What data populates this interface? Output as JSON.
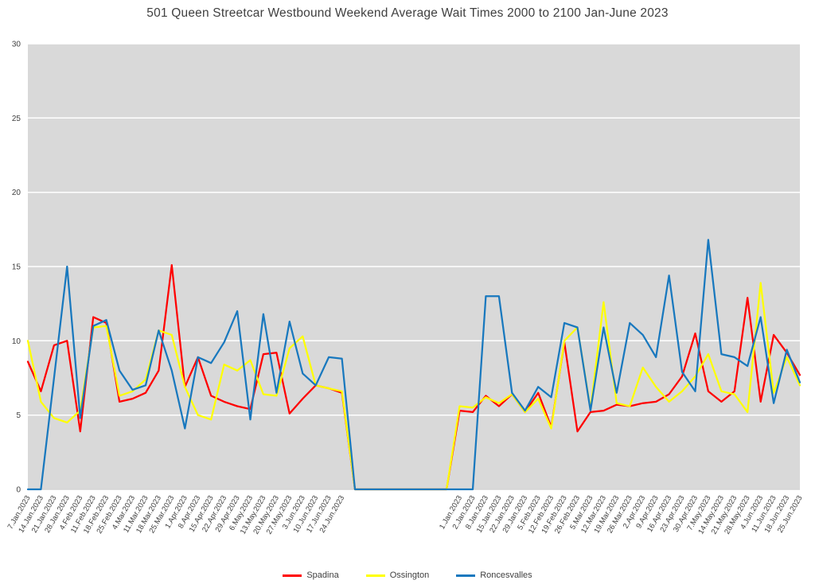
{
  "chart_data": {
    "type": "line",
    "title": "501 Queen Streetcar Westbound Weekend Average Wait Times 2000 to 2100 Jan-June 2023",
    "xlabel": "",
    "ylabel": "",
    "ylim": [
      0,
      30
    ],
    "yticks": [
      0,
      5,
      10,
      15,
      20,
      25,
      30
    ],
    "grid": true,
    "legend_position": "bottom",
    "plot_bg": "#D9D9D9",
    "gridline_color": "#FFFFFF",
    "axis_text_color": "#404040",
    "categories": [
      "7.Jan.2023",
      "14.Jan.2023",
      "21.Jan.2023",
      "28.Jan.2023",
      "4.Feb.2023",
      "11.Feb.2023",
      "18.Feb.2023",
      "25.Feb.2023",
      "4.Mar.2023",
      "11.Mar.2023",
      "18.Mar.2023",
      "25.Mar.2023",
      "1.Apr.2023",
      "8.Apr.2023",
      "15.Apr.2023",
      "22.Apr.2023",
      "29.Apr.2023",
      "6.May.2023",
      "13.May.2023",
      "20.May.2023",
      "27.May.2023",
      "3.Jun.2023",
      "10.Jun.2023",
      "17.Jun.2023",
      "24.Jun.2023",
      "",
      "",
      "",
      "",
      "",
      "",
      "",
      "",
      "1.Jan.2023",
      "2.Jan.2023",
      "8.Jan.2023",
      "15.Jan.2023",
      "22.Jan.2023",
      "29.Jan.2023",
      "5.Feb.2023",
      "12.Feb.2023",
      "19.Feb.2023",
      "26.Feb.2023",
      "5.Mar.2023",
      "12.Mar.2023",
      "19.Mar.2023",
      "26.Mar.2023",
      "2.Apr.2023",
      "9.Apr.2023",
      "16.Apr.2023",
      "23.Apr.2023",
      "30.Apr.2023",
      "7.May.2023",
      "14.May.2023",
      "21.May.2023",
      "28.May.2023",
      "4.Jun.2023",
      "11.Jun.2023",
      "18.Jun.2023",
      "25.Jun.2023"
    ],
    "series": [
      {
        "name": "Spadina",
        "color": "#FF0000",
        "values": [
          8.6,
          6.6,
          9.7,
          10,
          3.9,
          11.6,
          11.2,
          5.9,
          6.1,
          6.5,
          8,
          15.1,
          6.9,
          8.9,
          6.3,
          5.9,
          5.6,
          5.4,
          9.1,
          9.2,
          5.1,
          6.1,
          7,
          6.8,
          6.5,
          0,
          0,
          0,
          0,
          0,
          0,
          0,
          0,
          5.3,
          5.2,
          6.3,
          5.6,
          6.4,
          5.2,
          6.5,
          4.2,
          9.9,
          3.9,
          5.2,
          5.3,
          5.7,
          5.6,
          5.8,
          5.9,
          6.4,
          7.6,
          10.5,
          6.6,
          5.9,
          6.6,
          12.9,
          5.9,
          10.4,
          9.2,
          7.7
        ]
      },
      {
        "name": "Ossington",
        "color": "#FFFF00",
        "values": [
          10,
          5.9,
          4.8,
          4.5,
          5.3,
          10.9,
          11,
          6.3,
          6.6,
          7.4,
          10.7,
          10.4,
          6.9,
          5,
          4.7,
          8.4,
          8,
          8.7,
          6.4,
          6.3,
          9.5,
          10.3,
          7,
          6.8,
          6.6,
          0,
          0,
          0,
          0,
          0,
          0,
          0,
          0,
          5.6,
          5.5,
          6.2,
          5.8,
          6.4,
          5.2,
          6.1,
          4.1,
          10,
          10.9,
          5.4,
          12.6,
          5.8,
          5.6,
          8.2,
          6.9,
          5.9,
          6.6,
          7.6,
          9.1,
          6.6,
          6.4,
          5.2,
          13.9,
          6.5,
          8.9,
          7
        ]
      },
      {
        "name": "Roncesvalles",
        "color": "#1878BE",
        "values": [
          0,
          0,
          7.5,
          15,
          4.8,
          11,
          11.4,
          8,
          6.7,
          7,
          10.7,
          8,
          4.1,
          8.9,
          8.5,
          9.9,
          12,
          4.7,
          11.8,
          6.5,
          11.3,
          7.8,
          7,
          8.9,
          8.8,
          0,
          0,
          0,
          0,
          0,
          0,
          0,
          0,
          0,
          0,
          13,
          13,
          6.5,
          5.3,
          6.9,
          6.2,
          11.2,
          10.9,
          5.3,
          10.9,
          6.5,
          11.2,
          10.4,
          8.9,
          14.4,
          7.9,
          6.6,
          16.8,
          9.1,
          8.9,
          8.3,
          11.6,
          5.8,
          9.4,
          7.2
        ]
      }
    ]
  }
}
